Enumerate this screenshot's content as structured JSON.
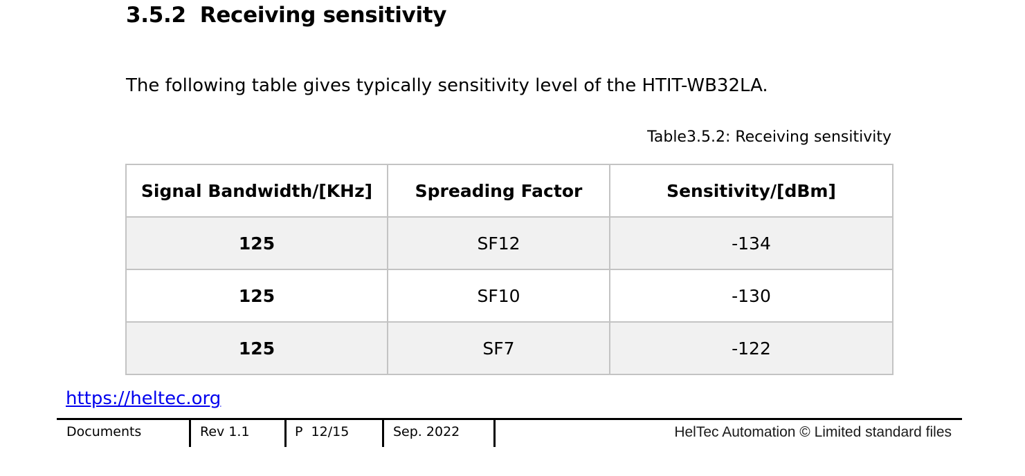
{
  "section": {
    "number": "3.5.2",
    "title": "Receiving sensitivity",
    "intro": "The following table gives typically sensitivity level of the HTIT-WB32LA.",
    "caption": "Table3.5.2: Receiving sensitivity"
  },
  "table": {
    "headers": [
      "Signal Bandwidth/[KHz]",
      "Spreading Factor",
      "Sensitivity/[dBm]"
    ],
    "rows": [
      [
        "125",
        "SF12",
        "-134"
      ],
      [
        "125",
        "SF10",
        "-130"
      ],
      [
        "125",
        "SF7",
        "-122"
      ]
    ]
  },
  "link": "https://heltec.org",
  "footer": {
    "documents": "Documents",
    "revision": "Rev 1.1",
    "page": "P  12/15",
    "date": "Sep. 2022",
    "company": "HelTec Automation © Limited standard files"
  }
}
